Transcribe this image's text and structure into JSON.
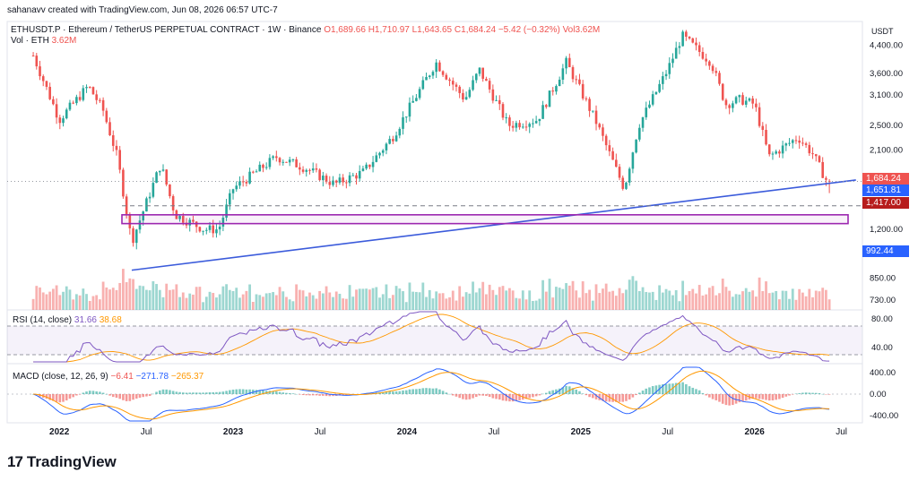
{
  "header": {
    "created_line": "sahanavv created with TradingView.com, Jun 08, 2026 06:57 UTC-7",
    "symbol_line": "ETHUSDT.P · Ethereum / TetherUS PERPETUAL CONTRACT · 1W · Binance",
    "ohlc": {
      "o": "O1,689.66",
      "h": "H1,710.97",
      "l": "L1,643.65",
      "c": "C1,684.24",
      "chg": "−5.42 (−0.32%)",
      "vol": "Vol3.62M"
    },
    "vol_label": "Vol · ETH",
    "vol_value": "3.62M"
  },
  "price_axis": {
    "unit": "USDT",
    "ticks": [
      "4,400.00",
      "3,600.00",
      "3,100.00",
      "2,500.00",
      "2,100.00",
      "1,200.00",
      "850.00",
      "730.00"
    ],
    "tags": [
      {
        "label": "1,684.24",
        "color": "#ef5350"
      },
      {
        "label": "1,651.81",
        "color": "#2962ff"
      },
      {
        "label": "1,417.00",
        "color": "#b71c1c"
      },
      {
        "label": "992.44",
        "color": "#2962ff"
      }
    ]
  },
  "time_axis": [
    "2022",
    "Jul",
    "2023",
    "Jul",
    "2024",
    "Jul",
    "2025",
    "Jul",
    "2026",
    "Jul"
  ],
  "rsi": {
    "label": "RSI (14, close)",
    "value": "31.66",
    "ma_value": "38.68",
    "ticks": [
      "80.00",
      "40.00"
    ]
  },
  "macd": {
    "label": "MACD (close, 12, 26, 9)",
    "hist": "−6.41",
    "macd": "−271.78",
    "signal": "−265.37",
    "ticks": [
      "400.00",
      "0.00",
      "-400.00"
    ]
  },
  "colors": {
    "up": "#26a69a",
    "down": "#ef5350",
    "trend": "#3b5bdb",
    "zone": "#9c27b0",
    "rsi": "#7e57c2",
    "signal": "#ff9800",
    "macd": "#2962ff"
  },
  "brand": "TradingView",
  "chart_data": {
    "type": "candlestick",
    "title": "ETHUSDT.P · Ethereum / TetherUS PERPETUAL CONTRACT · 1W · Binance",
    "xlabel": "",
    "ylabel": "USDT",
    "x_range": [
      "2022",
      "2026-08"
    ],
    "y_scale": "log",
    "ylim": [
      680,
      5200
    ],
    "last": {
      "open": 1689.66,
      "high": 1710.97,
      "low": 1643.65,
      "close": 1684.24,
      "change": -5.42,
      "change_pct": -0.32,
      "volume": "3.62M"
    },
    "close_series": [
      {
        "x": "2021-11",
        "y": 4300
      },
      {
        "x": "2022-01",
        "y": 2600
      },
      {
        "x": "2022-03",
        "y": 3300
      },
      {
        "x": "2022-04",
        "y": 2800
      },
      {
        "x": "2022-05",
        "y": 2000
      },
      {
        "x": "2022-06",
        "y": 1100
      },
      {
        "x": "2022-08",
        "y": 1900
      },
      {
        "x": "2022-09",
        "y": 1330
      },
      {
        "x": "2022-11",
        "y": 1200
      },
      {
        "x": "2022-12",
        "y": 1200
      },
      {
        "x": "2023-01",
        "y": 1600
      },
      {
        "x": "2023-04",
        "y": 2000
      },
      {
        "x": "2023-06",
        "y": 1850
      },
      {
        "x": "2023-08",
        "y": 1650
      },
      {
        "x": "2023-10",
        "y": 1800
      },
      {
        "x": "2023-12",
        "y": 2300
      },
      {
        "x": "2024-03",
        "y": 3900
      },
      {
        "x": "2024-05",
        "y": 3000
      },
      {
        "x": "2024-06",
        "y": 3700
      },
      {
        "x": "2024-08",
        "y": 2500
      },
      {
        "x": "2024-10",
        "y": 2600
      },
      {
        "x": "2024-12",
        "y": 3900
      },
      {
        "x": "2025-02",
        "y": 2600
      },
      {
        "x": "2025-04",
        "y": 1600
      },
      {
        "x": "2025-05",
        "y": 2500
      },
      {
        "x": "2025-07",
        "y": 3700
      },
      {
        "x": "2025-08",
        "y": 4700
      },
      {
        "x": "2025-10",
        "y": 3900
      },
      {
        "x": "2025-11",
        "y": 2900
      },
      {
        "x": "2025-12",
        "y": 3000
      },
      {
        "x": "2026-01",
        "y": 2900
      },
      {
        "x": "2026-02",
        "y": 2000
      },
      {
        "x": "2026-04",
        "y": 2300
      },
      {
        "x": "2026-05",
        "y": 2050
      },
      {
        "x": "2026-06",
        "y": 1684
      }
    ],
    "trendline": [
      {
        "x": "2022-06",
        "y": 900
      },
      {
        "x": "2026-08",
        "y": 1700
      }
    ],
    "support_zone": {
      "low": 1250,
      "high": 1330
    },
    "horizontal_levels": [
      1417,
      1684.24
    ],
    "volume_last": "3.62M",
    "rsi": {
      "period": 14,
      "value": 31.66,
      "ma": 38.68,
      "bands": [
        70,
        30
      ],
      "ylim": [
        20,
        90
      ]
    },
    "macd": {
      "fast": 12,
      "slow": 26,
      "signal": 9,
      "histogram": -6.41,
      "macd": -271.78,
      "signal_value": -265.37,
      "ylim": [
        -500,
        500
      ]
    },
    "legend": "top-left",
    "grid": false
  }
}
